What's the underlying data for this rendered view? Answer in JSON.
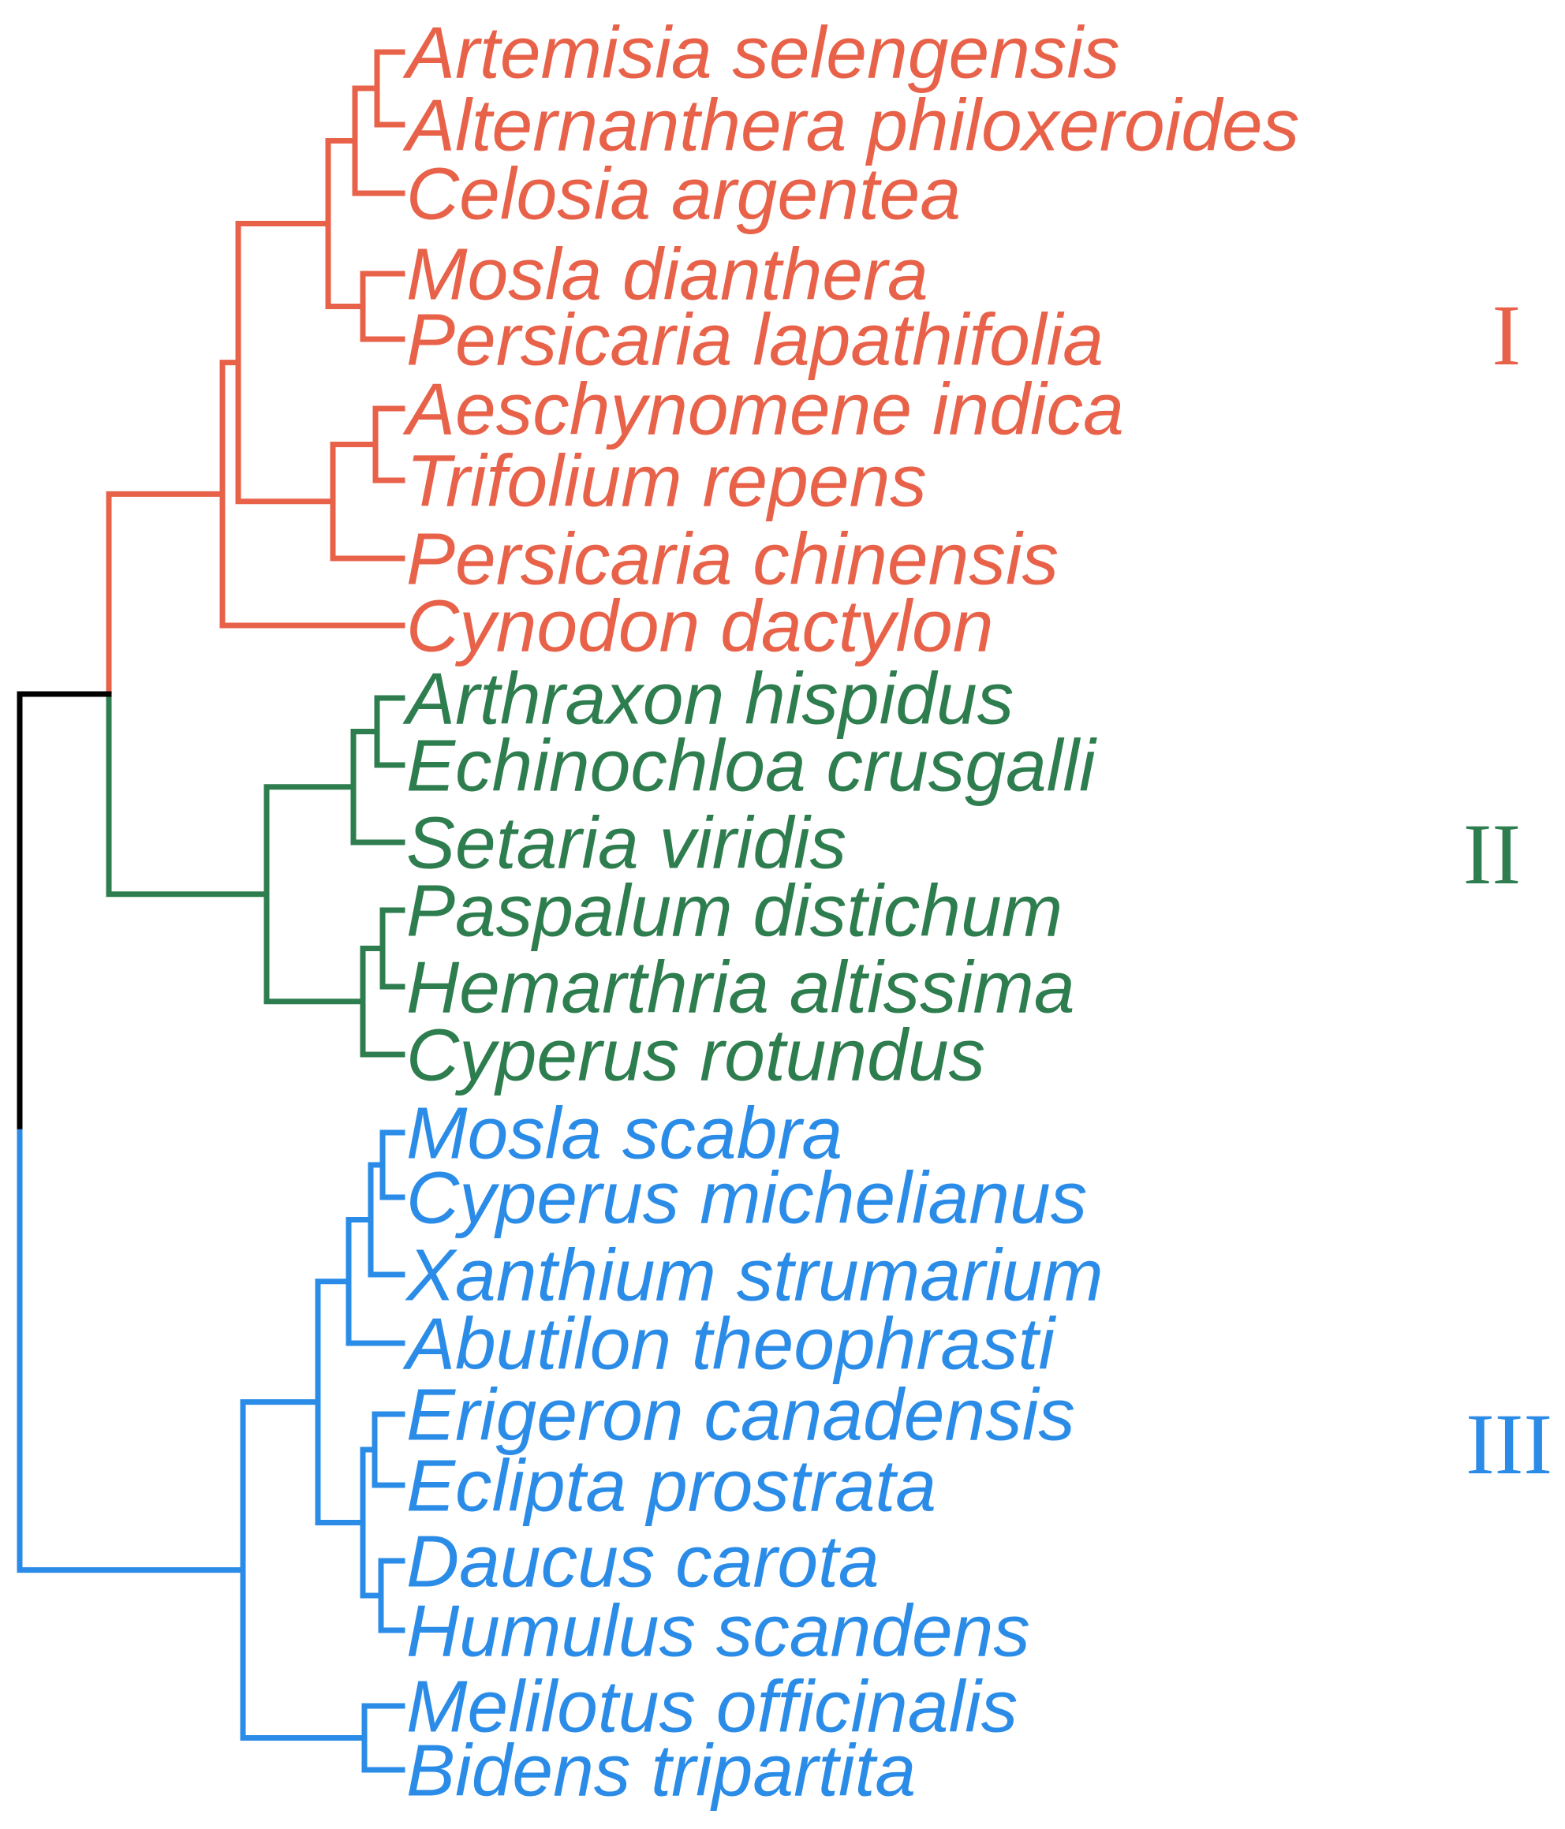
{
  "colors": {
    "root": "#000000",
    "clade_I": "#e8624a",
    "clade_II": "#2e7d4f",
    "clade_III": "#2b8ce8"
  },
  "clades": [
    {
      "id": "clade_I",
      "label": "I",
      "color": "#e8624a"
    },
    {
      "id": "clade_II",
      "label": "II",
      "color": "#2e7d4f"
    },
    {
      "id": "clade_III",
      "label": "III",
      "color": "#2b8ce8"
    }
  ],
  "leaves": [
    {
      "id": "artemisia",
      "label": "Artemisia selengensis",
      "clade": "clade_I"
    },
    {
      "id": "alternanthera",
      "label": "Alternanthera philoxeroides",
      "clade": "clade_I"
    },
    {
      "id": "celosia",
      "label": "Celosia argentea",
      "clade": "clade_I"
    },
    {
      "id": "mosla_d",
      "label": "Mosla dianthera",
      "clade": "clade_I"
    },
    {
      "id": "persicaria_l",
      "label": "Persicaria lapathifolia",
      "clade": "clade_I"
    },
    {
      "id": "aeschynomene",
      "label": "Aeschynomene indica",
      "clade": "clade_I"
    },
    {
      "id": "trifolium",
      "label": "Trifolium repens",
      "clade": "clade_I"
    },
    {
      "id": "persicaria_c",
      "label": "Persicaria chinensis",
      "clade": "clade_I"
    },
    {
      "id": "cynodon",
      "label": "Cynodon dactylon",
      "clade": "clade_I"
    },
    {
      "id": "arthraxon",
      "label": "Arthraxon hispidus",
      "clade": "clade_II"
    },
    {
      "id": "echinochloa",
      "label": "Echinochloa crusgalli",
      "clade": "clade_II"
    },
    {
      "id": "setaria",
      "label": "Setaria viridis",
      "clade": "clade_II"
    },
    {
      "id": "paspalum",
      "label": "Paspalum distichum",
      "clade": "clade_II"
    },
    {
      "id": "hemarthria",
      "label": "Hemarthria altissima",
      "clade": "clade_II"
    },
    {
      "id": "cyperus_r",
      "label": "Cyperus rotundus",
      "clade": "clade_II"
    },
    {
      "id": "mosla_s",
      "label": "Mosla scabra",
      "clade": "clade_III"
    },
    {
      "id": "cyperus_m",
      "label": "Cyperus michelianus",
      "clade": "clade_III"
    },
    {
      "id": "xanthium",
      "label": "Xanthium strumarium",
      "clade": "clade_III"
    },
    {
      "id": "abutilon",
      "label": "Abutilon theophrasti",
      "clade": "clade_III"
    },
    {
      "id": "erigeron",
      "label": "Erigeron canadensis",
      "clade": "clade_III"
    },
    {
      "id": "eclipta",
      "label": "Eclipta prostrata",
      "clade": "clade_III"
    },
    {
      "id": "daucus",
      "label": "Daucus carota",
      "clade": "clade_III"
    },
    {
      "id": "humulus",
      "label": "Humulus scandens",
      "clade": "clade_III"
    },
    {
      "id": "melilotus",
      "label": "Melilotus officinalis",
      "clade": "clade_III"
    },
    {
      "id": "bidens",
      "label": "Bidens tripartita",
      "clade": "clade_III"
    }
  ]
}
